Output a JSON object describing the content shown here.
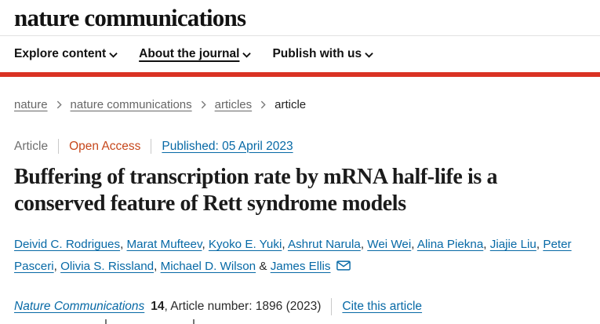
{
  "header": {
    "logo": "nature communications",
    "nav_items": [
      {
        "label": "Explore content",
        "underlined": false
      },
      {
        "label": "About the journal",
        "underlined": true
      },
      {
        "label": "Publish with us",
        "underlined": false
      }
    ]
  },
  "breadcrumb": [
    {
      "label": "nature",
      "is_link": true
    },
    {
      "label": "nature communications",
      "is_link": true
    },
    {
      "label": "articles",
      "is_link": true
    },
    {
      "label": "article",
      "is_link": false
    }
  ],
  "article": {
    "type_label": "Article",
    "access_label": "Open Access",
    "published_text": "Published: 05 April 2023",
    "title": "Buffering of transcription rate by mRNA half-life is a conserved feature of Rett syndrome models",
    "authors": [
      "Deivid C. Rodrigues",
      "Marat Mufteev",
      "Kyoko E. Yuki",
      "Ashrut Narula",
      "Wei Wei",
      "Alina Piekna",
      "Jiajie Liu",
      "Peter Pasceri",
      "Olivia S. Rissland",
      "Michael D. Wilson",
      "James Ellis"
    ],
    "journal_name": "Nature Communications",
    "volume": "14",
    "article_info": ", Article number: 1896 (2023)",
    "cite_link": "Cite this article"
  },
  "icons": {
    "nav_chevron": "chevron-down-icon",
    "breadcrumb_chevron": "chevron-right-icon",
    "corresponding_author": "envelope-icon"
  },
  "colors": {
    "brand_red": "#da3223",
    "link_blue": "#0769a6",
    "open_access": "#c6471c",
    "text_gray": "#666666",
    "text_dark": "#222222"
  }
}
